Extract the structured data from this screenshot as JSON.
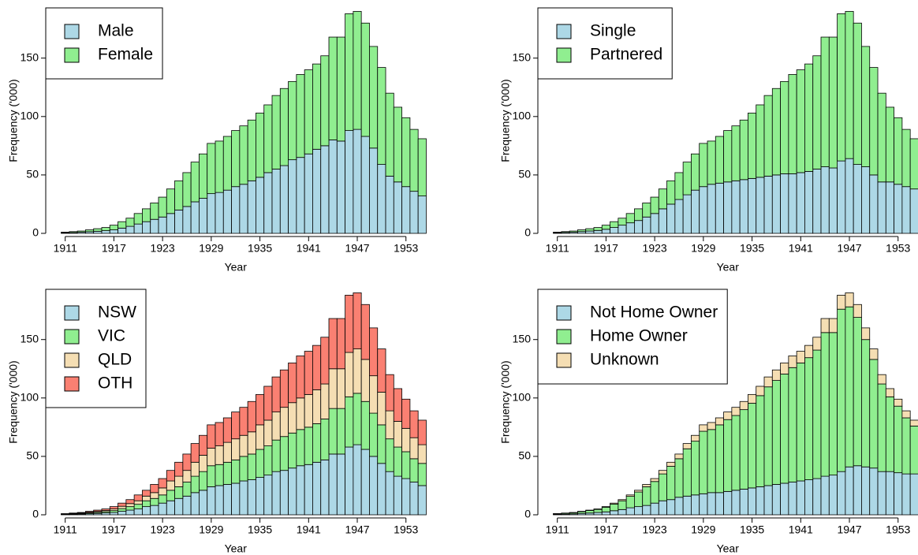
{
  "chart_data": [
    {
      "type": "bar",
      "stacked": true,
      "xlabel": "Year",
      "ylabel": "Frequency ('000)",
      "legend": "top-left",
      "x": [
        1911,
        1912,
        1913,
        1914,
        1915,
        1916,
        1917,
        1918,
        1919,
        1920,
        1921,
        1922,
        1923,
        1924,
        1925,
        1926,
        1927,
        1928,
        1929,
        1930,
        1931,
        1932,
        1933,
        1934,
        1935,
        1936,
        1937,
        1938,
        1939,
        1940,
        1941,
        1942,
        1943,
        1944,
        1945,
        1946,
        1947,
        1948,
        1949,
        1950,
        1951,
        1952,
        1953,
        1954,
        1955
      ],
      "xlim": [
        1908.6,
        1957.4
      ],
      "xticks": [
        1911,
        1917,
        1923,
        1929,
        1935,
        1941,
        1947,
        1953
      ],
      "ylim": [
        0,
        193
      ],
      "yticks": [
        0,
        50,
        100,
        150
      ],
      "series": [
        {
          "name": "Male",
          "color": "#add8e6",
          "values": [
            0.5,
            0.7,
            1,
            1.4,
            1.8,
            2.3,
            3,
            4.5,
            6,
            8,
            10,
            12,
            14,
            17,
            20,
            23,
            27,
            30,
            34,
            35,
            37,
            40,
            42,
            45,
            48,
            52,
            55,
            58,
            63,
            65,
            68,
            72,
            75,
            80,
            79,
            88,
            89,
            83,
            73,
            59,
            49,
            44,
            40,
            36,
            32
          ]
        },
        {
          "name": "Female",
          "color": "#90ee90",
          "values": [
            0.5,
            0.8,
            1,
            1.6,
            2.2,
            2.7,
            4,
            5.5,
            7,
            9,
            11,
            14,
            17,
            21,
            25,
            29,
            34,
            38,
            43,
            44,
            46,
            48,
            50,
            52,
            55,
            58,
            63,
            66,
            67,
            71,
            72,
            73,
            77,
            88,
            89,
            100,
            101,
            97,
            87,
            83,
            71,
            64,
            59,
            53,
            49
          ]
        }
      ]
    },
    {
      "type": "bar",
      "stacked": true,
      "xlabel": "Year",
      "ylabel": "Frequency ('000)",
      "legend": "top-left",
      "x": [
        1911,
        1912,
        1913,
        1914,
        1915,
        1916,
        1917,
        1918,
        1919,
        1920,
        1921,
        1922,
        1923,
        1924,
        1925,
        1926,
        1927,
        1928,
        1929,
        1930,
        1931,
        1932,
        1933,
        1934,
        1935,
        1936,
        1937,
        1938,
        1939,
        1940,
        1941,
        1942,
        1943,
        1944,
        1945,
        1946,
        1947,
        1948,
        1949,
        1950,
        1951,
        1952,
        1953,
        1954,
        1955
      ],
      "xlim": [
        1908.6,
        1957.4
      ],
      "xticks": [
        1911,
        1917,
        1923,
        1929,
        1935,
        1941,
        1947,
        1953
      ],
      "ylim": [
        0,
        193
      ],
      "yticks": [
        0,
        50,
        100,
        150
      ],
      "series": [
        {
          "name": "Single",
          "color": "#add8e6",
          "values": [
            0.5,
            0.8,
            1,
            1.5,
            2,
            2.5,
            3.5,
            5,
            7,
            9,
            11,
            14,
            17,
            21,
            25,
            29,
            33,
            37,
            40,
            42,
            43,
            44,
            45,
            46,
            47,
            48,
            49,
            50,
            51,
            51,
            52,
            53,
            55,
            57,
            56,
            62,
            64,
            59,
            57,
            50,
            44,
            44,
            42,
            40,
            38
          ]
        },
        {
          "name": "Partnered",
          "color": "#90ee90",
          "values": [
            0.5,
            0.7,
            1,
            1.5,
            2,
            2.5,
            3.5,
            5,
            6,
            8,
            10,
            12,
            14,
            17,
            20,
            23,
            28,
            31,
            37,
            37,
            40,
            44,
            47,
            51,
            56,
            62,
            69,
            74,
            79,
            85,
            88,
            92,
            97,
            111,
            112,
            126,
            126,
            121,
            103,
            92,
            76,
            64,
            57,
            49,
            43
          ]
        }
      ]
    },
    {
      "type": "bar",
      "stacked": true,
      "xlabel": "Year",
      "ylabel": "Frequency ('000)",
      "legend": "top-left",
      "x": [
        1911,
        1912,
        1913,
        1914,
        1915,
        1916,
        1917,
        1918,
        1919,
        1920,
        1921,
        1922,
        1923,
        1924,
        1925,
        1926,
        1927,
        1928,
        1929,
        1930,
        1931,
        1932,
        1933,
        1934,
        1935,
        1936,
        1937,
        1938,
        1939,
        1940,
        1941,
        1942,
        1943,
        1944,
        1945,
        1946,
        1947,
        1948,
        1949,
        1950,
        1951,
        1952,
        1953,
        1954,
        1955
      ],
      "xlim": [
        1908.6,
        1957.4
      ],
      "xticks": [
        1911,
        1917,
        1923,
        1929,
        1935,
        1941,
        1947,
        1953
      ],
      "ylim": [
        0,
        193
      ],
      "yticks": [
        0,
        50,
        100,
        150
      ],
      "series": [
        {
          "name": "NSW",
          "color": "#add8e6",
          "values": [
            0.3,
            0.5,
            0.6,
            0.9,
            1.2,
            1.6,
            2,
            3,
            4,
            5,
            7,
            8,
            10,
            12,
            14,
            16,
            19,
            21,
            24,
            25,
            26,
            27,
            29,
            30,
            32,
            34,
            37,
            38,
            40,
            42,
            43,
            45,
            47,
            52,
            52,
            58,
            60,
            56,
            50,
            44,
            37,
            33,
            31,
            28,
            25
          ]
        },
        {
          "name": "VIC",
          "color": "#90ee90",
          "values": [
            0.2,
            0.3,
            0.5,
            0.7,
            0.9,
            1.1,
            1.6,
            2.3,
            3,
            4,
            5,
            6,
            7,
            9,
            10,
            12,
            14,
            16,
            18,
            18,
            19,
            20,
            21,
            22,
            24,
            25,
            27,
            29,
            30,
            31,
            32,
            33,
            35,
            39,
            39,
            43,
            44,
            41,
            37,
            33,
            28,
            25,
            23,
            20,
            19
          ]
        },
        {
          "name": "QLD",
          "color": "#f5deb3",
          "values": [
            0.2,
            0.3,
            0.4,
            0.6,
            0.8,
            1,
            1.4,
            2,
            2.6,
            3,
            4,
            5,
            6,
            8,
            9,
            10,
            12,
            14,
            15,
            16,
            17,
            18,
            18,
            19,
            21,
            22,
            24,
            25,
            26,
            27,
            28,
            29,
            30,
            34,
            34,
            38,
            38,
            36,
            32,
            28,
            24,
            22,
            20,
            18,
            16
          ]
        },
        {
          "name": "OTH",
          "color": "#fa8072",
          "values": [
            0.3,
            0.4,
            0.5,
            0.8,
            1.1,
            1.3,
            2,
            2.7,
            3.4,
            5,
            5,
            7,
            8,
            9,
            12,
            14,
            16,
            17,
            20,
            20,
            21,
            23,
            24,
            26,
            26,
            29,
            30,
            32,
            34,
            36,
            37,
            38,
            40,
            43,
            43,
            49,
            48,
            47,
            41,
            37,
            31,
            28,
            25,
            23,
            21
          ]
        }
      ]
    },
    {
      "type": "bar",
      "stacked": true,
      "xlabel": "Year",
      "ylabel": "Frequency ('000)",
      "legend": "top-left",
      "x": [
        1911,
        1912,
        1913,
        1914,
        1915,
        1916,
        1917,
        1918,
        1919,
        1920,
        1921,
        1922,
        1923,
        1924,
        1925,
        1926,
        1927,
        1928,
        1929,
        1930,
        1931,
        1932,
        1933,
        1934,
        1935,
        1936,
        1937,
        1938,
        1939,
        1940,
        1941,
        1942,
        1943,
        1944,
        1945,
        1946,
        1947,
        1948,
        1949,
        1950,
        1951,
        1952,
        1953,
        1954,
        1955
      ],
      "xlim": [
        1908.6,
        1957.4
      ],
      "xticks": [
        1911,
        1917,
        1923,
        1929,
        1935,
        1941,
        1947,
        1953
      ],
      "ylim": [
        0,
        193
      ],
      "yticks": [
        0,
        50,
        100,
        150
      ],
      "series": [
        {
          "name": "Not Home Owner",
          "color": "#add8e6",
          "values": [
            0.4,
            0.6,
            0.8,
            1.2,
            1.5,
            2,
            2.5,
            3.5,
            4.5,
            6,
            7,
            8,
            10,
            12,
            13,
            15,
            16,
            17,
            18,
            19,
            19,
            20,
            21,
            22,
            23,
            24,
            25,
            26,
            27,
            28,
            29,
            30,
            31,
            33,
            34,
            37,
            41,
            42,
            41,
            40,
            37,
            37,
            36,
            35,
            35
          ]
        },
        {
          "name": "Home Owner",
          "color": "#90ee90",
          "values": [
            0.5,
            0.8,
            1,
            1.5,
            2.2,
            2.6,
            4,
            5.7,
            7.5,
            9.8,
            12.5,
            16,
            18.5,
            23,
            28.5,
            33,
            40.5,
            46,
            53.5,
            54,
            58,
            61.5,
            64,
            68,
            72.5,
            78,
            84.5,
            89,
            93.5,
            98,
            101,
            104.5,
            110,
            123,
            122,
            139,
            137,
            127,
            109,
            93,
            75,
            64,
            57,
            48,
            41
          ]
        },
        {
          "name": "Unknown",
          "color": "#f5deb3",
          "values": [
            0.1,
            0.1,
            0.2,
            0.3,
            0.3,
            0.4,
            0.5,
            0.8,
            1,
            1.2,
            1.5,
            2,
            2.5,
            3,
            3.5,
            4,
            4.5,
            5,
            5.5,
            6,
            6,
            6.5,
            7,
            7,
            7.5,
            8,
            8.5,
            9,
            9.5,
            10,
            10,
            10.5,
            11,
            12,
            12,
            12,
            12,
            11,
            10,
            9,
            8,
            7,
            6,
            6,
            5
          ]
        }
      ]
    }
  ]
}
